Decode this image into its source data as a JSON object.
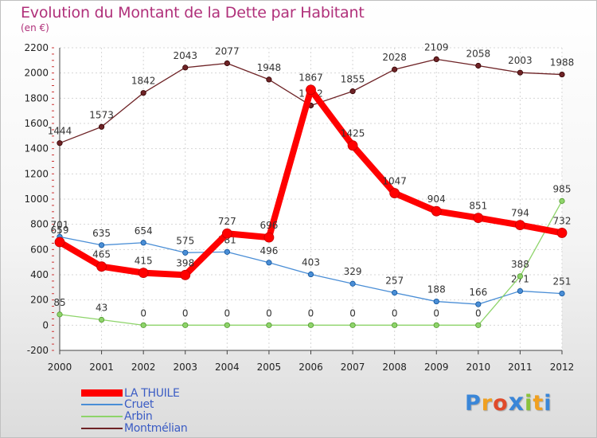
{
  "title": "Evolution du Montant de la Dette par Habitant",
  "subtitle": "(en €)",
  "logo": {
    "text": "Proxiti"
  },
  "chart_data": {
    "type": "line",
    "title": "Evolution du Montant de la Dette par Habitant",
    "subtitle": "(en €)",
    "xlabel": "",
    "ylabel": "",
    "x": [
      "2000",
      "2001",
      "2002",
      "2003",
      "2004",
      "2005",
      "2006",
      "2007",
      "2008",
      "2009",
      "2010",
      "2011",
      "2012"
    ],
    "ylim": [
      -200,
      2200
    ],
    "yticks": [
      -200,
      0,
      200,
      400,
      600,
      800,
      1000,
      1200,
      1400,
      1600,
      1800,
      2000,
      2200
    ],
    "grid": true,
    "legend_position": "bottom-left",
    "series": [
      {
        "name": "Montmélian",
        "color": "#6e2326",
        "values": [
          1444,
          1573,
          1842,
          2043,
          2077,
          1948,
          1742,
          1855,
          2028,
          2109,
          2058,
          2003,
          1988
        ],
        "labels": [
          "1444",
          "1573",
          "1842",
          "2043",
          "2077",
          "1948",
          "1742",
          "1855",
          "2028",
          "2109",
          "2058",
          "2003",
          "1988"
        ]
      },
      {
        "name": "Cruet",
        "color": "#4a8ed6",
        "values": [
          701,
          635,
          654,
          575,
          581,
          496,
          403,
          329,
          257,
          188,
          166,
          271,
          251
        ],
        "labels": [
          "701",
          "635",
          "654",
          "575",
          "581",
          "496",
          "403",
          "329",
          "257",
          "188",
          "166",
          "271",
          "251"
        ]
      },
      {
        "name": "Arbin",
        "color": "#8ed46a",
        "values": [
          85,
          43,
          0,
          0,
          0,
          0,
          0,
          0,
          0,
          0,
          0,
          388,
          985
        ],
        "labels": [
          "85",
          "43",
          "0",
          "0",
          "0",
          "0",
          "0",
          "0",
          "0",
          "0",
          "0",
          "388",
          "985"
        ]
      },
      {
        "name": "LA THUILE",
        "color": "#ff0000",
        "values": [
          659,
          465,
          415,
          398,
          727,
          696,
          1867,
          1425,
          1047,
          904,
          851,
          794,
          732
        ],
        "labels": [
          "659",
          "465",
          "415",
          "398",
          "727",
          "696",
          "1867",
          "1425",
          "1047",
          "904",
          "851",
          "794",
          "732"
        ]
      }
    ],
    "legend_order": [
      "LA THUILE",
      "Cruet",
      "Arbin",
      "Montmélian"
    ]
  }
}
